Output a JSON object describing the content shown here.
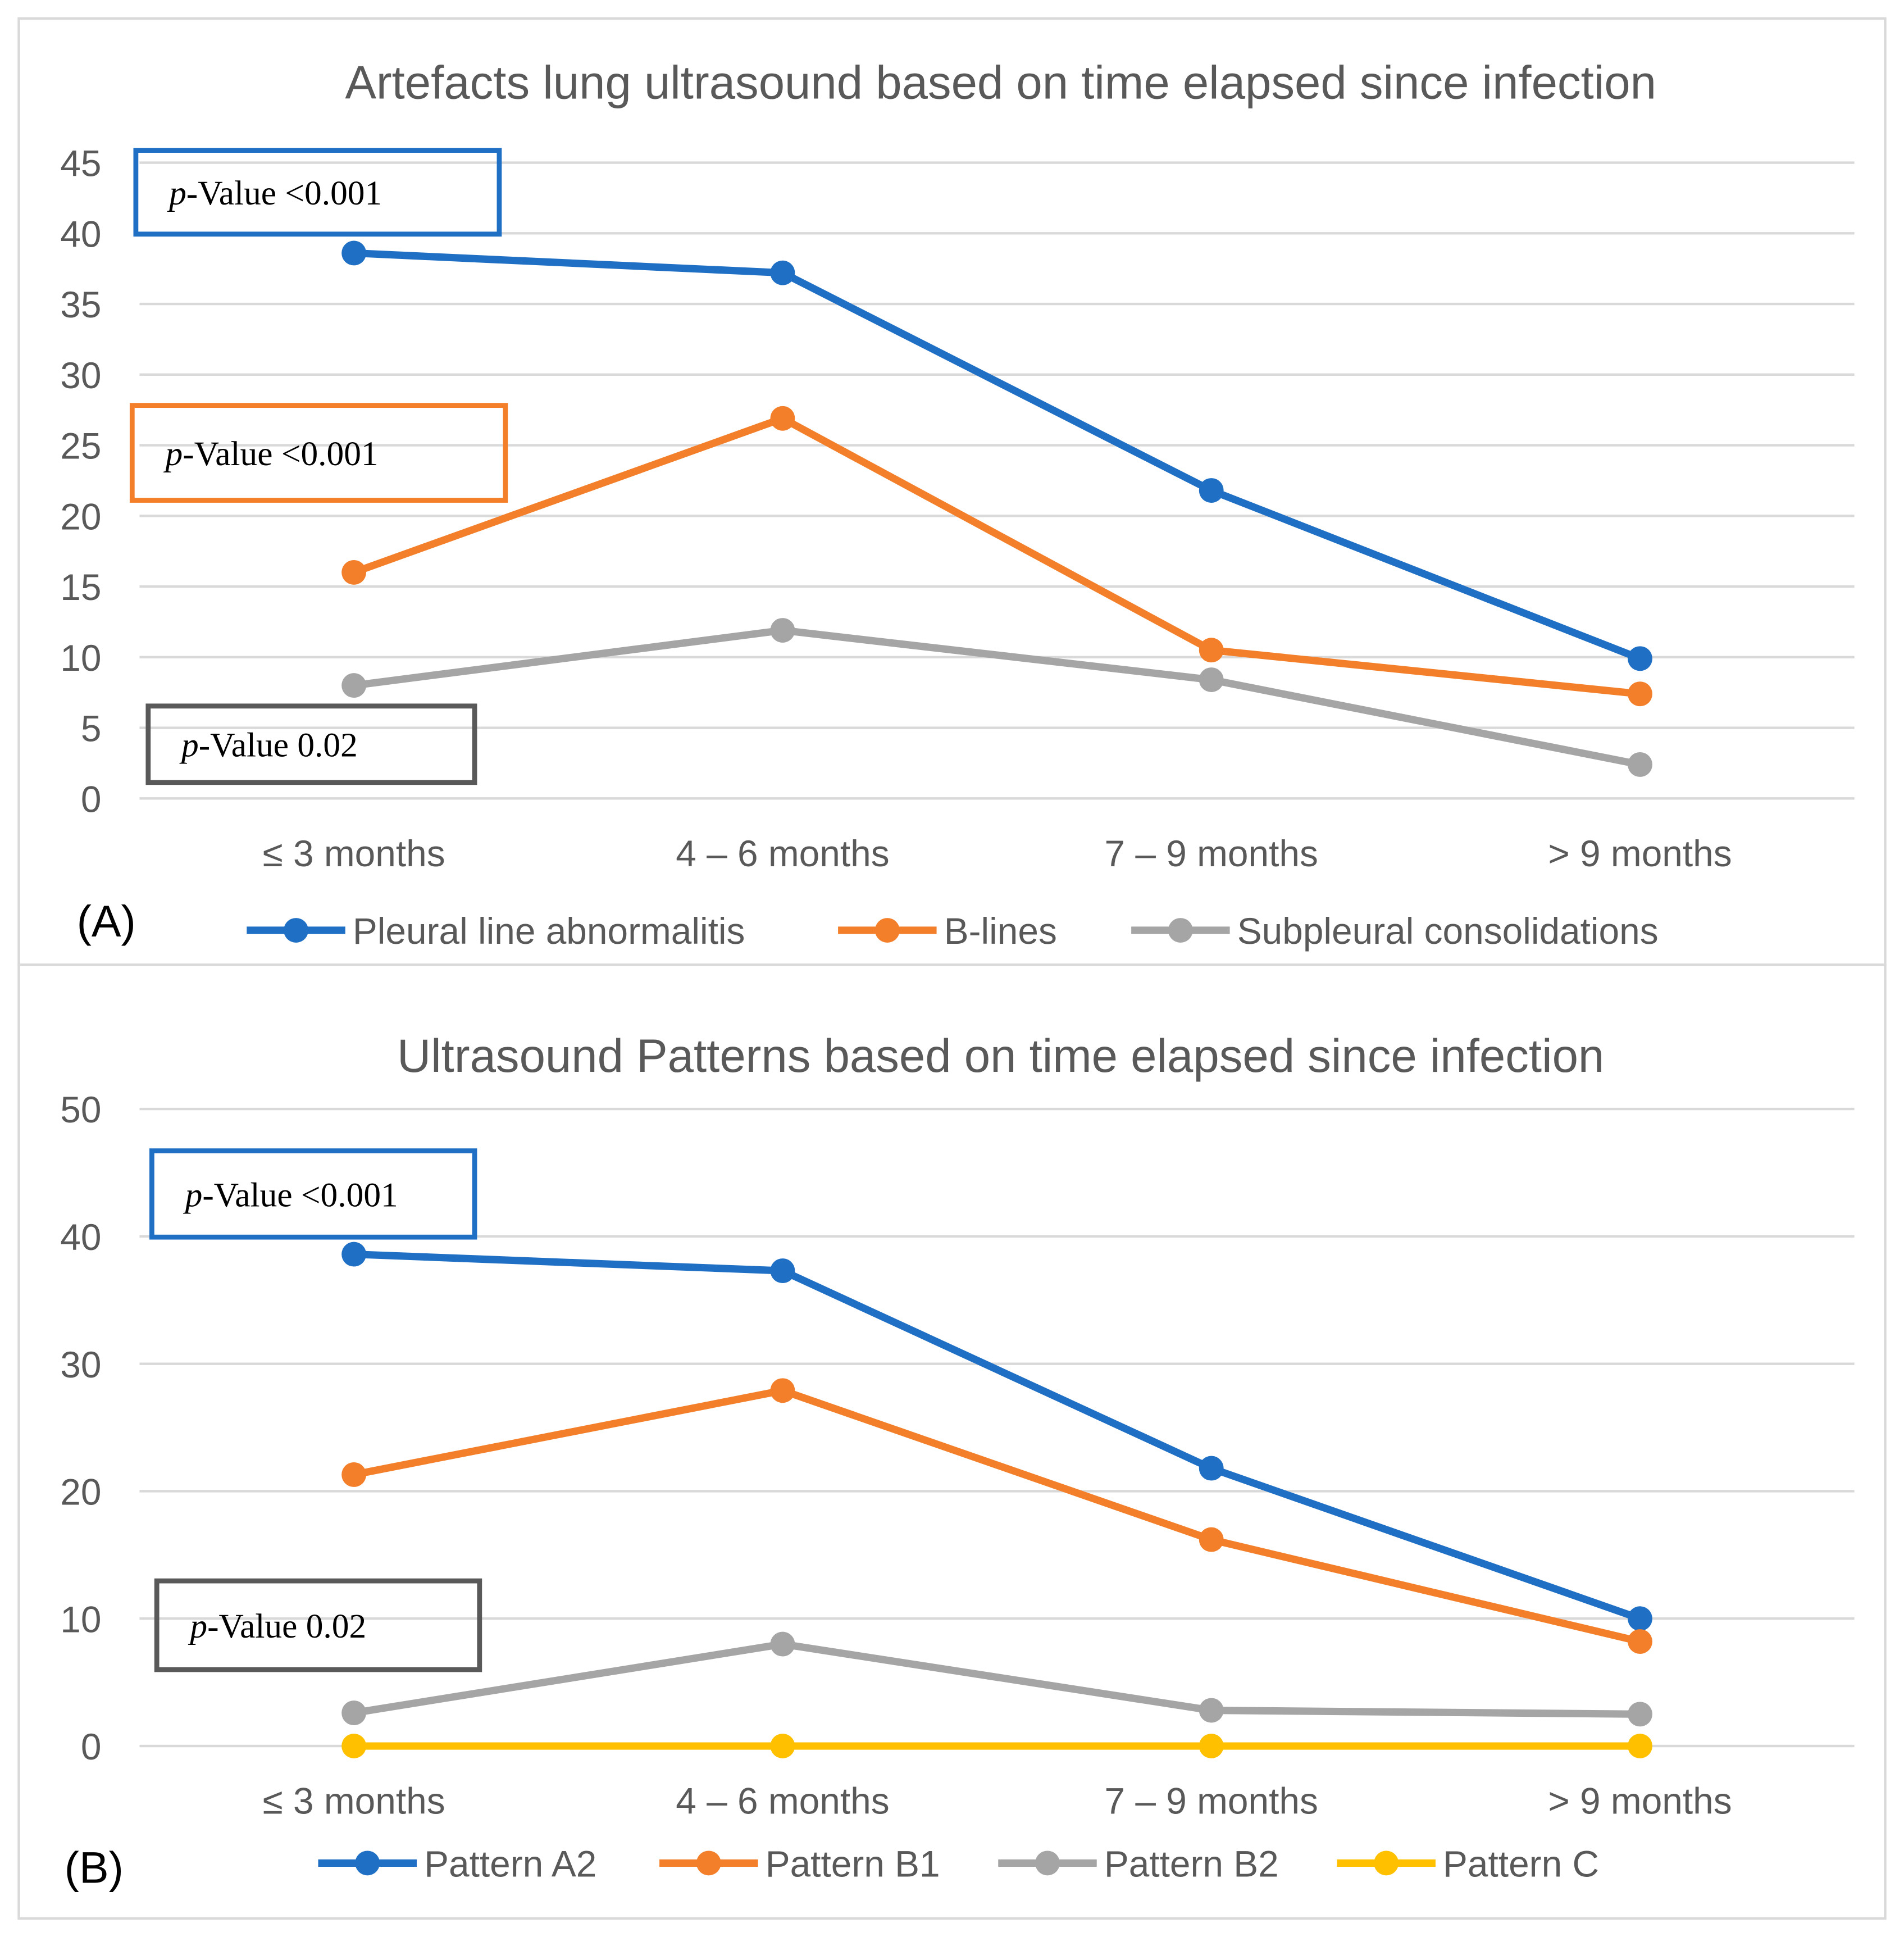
{
  "chart_data": [
    {
      "type": "line",
      "panel_label": "(A)",
      "title": "Artefacts lung ultrasound based on time elapsed since infection",
      "xlabel": "",
      "ylabel": "",
      "categories": [
        "≤ 3 months",
        "4 – 6 months",
        "7 – 9 months",
        "> 9 months"
      ],
      "ylim": [
        0,
        45
      ],
      "yticks": [
        0,
        5,
        10,
        15,
        20,
        25,
        30,
        35,
        40,
        45
      ],
      "grid": true,
      "legend_position": "bottom",
      "series": [
        {
          "name": "Pleural line abnormalitis",
          "color": "#1F6FC5",
          "values": [
            38.6,
            37.2,
            21.8,
            9.9
          ]
        },
        {
          "name": "B-lines",
          "color": "#F47F2A",
          "values": [
            16.0,
            26.9,
            10.5,
            7.4
          ]
        },
        {
          "name": "Subpleural consolidations",
          "color": "#A5A5A5",
          "values": [
            8.0,
            11.9,
            8.4,
            2.4
          ]
        }
      ],
      "annotations": [
        {
          "italic": "p",
          "text": "-Value <0.001",
          "color": "#1F6FC5",
          "near_value": 42
        },
        {
          "italic": "p",
          "text": "-Value <0.001",
          "color": "#F47F2A",
          "near_value": 24
        },
        {
          "italic": "p",
          "text": "-Value 0.02",
          "color": "#595959",
          "near_value": 4
        }
      ]
    },
    {
      "type": "line",
      "panel_label": "(B)",
      "title": "Ultrasound Patterns  based on time elapsed since infection",
      "xlabel": "",
      "ylabel": "",
      "categories": [
        "≤ 3 months",
        "4 – 6 months",
        "7 – 9 months",
        "> 9 months"
      ],
      "ylim": [
        0,
        50
      ],
      "yticks": [
        0,
        10,
        20,
        30,
        40,
        50
      ],
      "grid": true,
      "legend_position": "bottom",
      "series": [
        {
          "name": "Pattern A2",
          "color": "#1F6FC5",
          "values": [
            38.6,
            37.3,
            21.8,
            10.0
          ]
        },
        {
          "name": "Pattern B1",
          "color": "#F47F2A",
          "values": [
            21.3,
            27.9,
            16.2,
            8.2
          ]
        },
        {
          "name": "Pattern B2",
          "color": "#A5A5A5",
          "values": [
            2.6,
            8.0,
            2.8,
            2.5
          ]
        },
        {
          "name": "Pattern C",
          "color": "#FFC000",
          "values": [
            0,
            0,
            0,
            0
          ]
        }
      ],
      "annotations": [
        {
          "italic": "p",
          "text": "-Value <0.001",
          "color": "#1F6FC5",
          "near_value": 43
        },
        {
          "italic": "p",
          "text": "-Value 0.02",
          "color": "#595959",
          "near_value": 10
        }
      ]
    }
  ]
}
